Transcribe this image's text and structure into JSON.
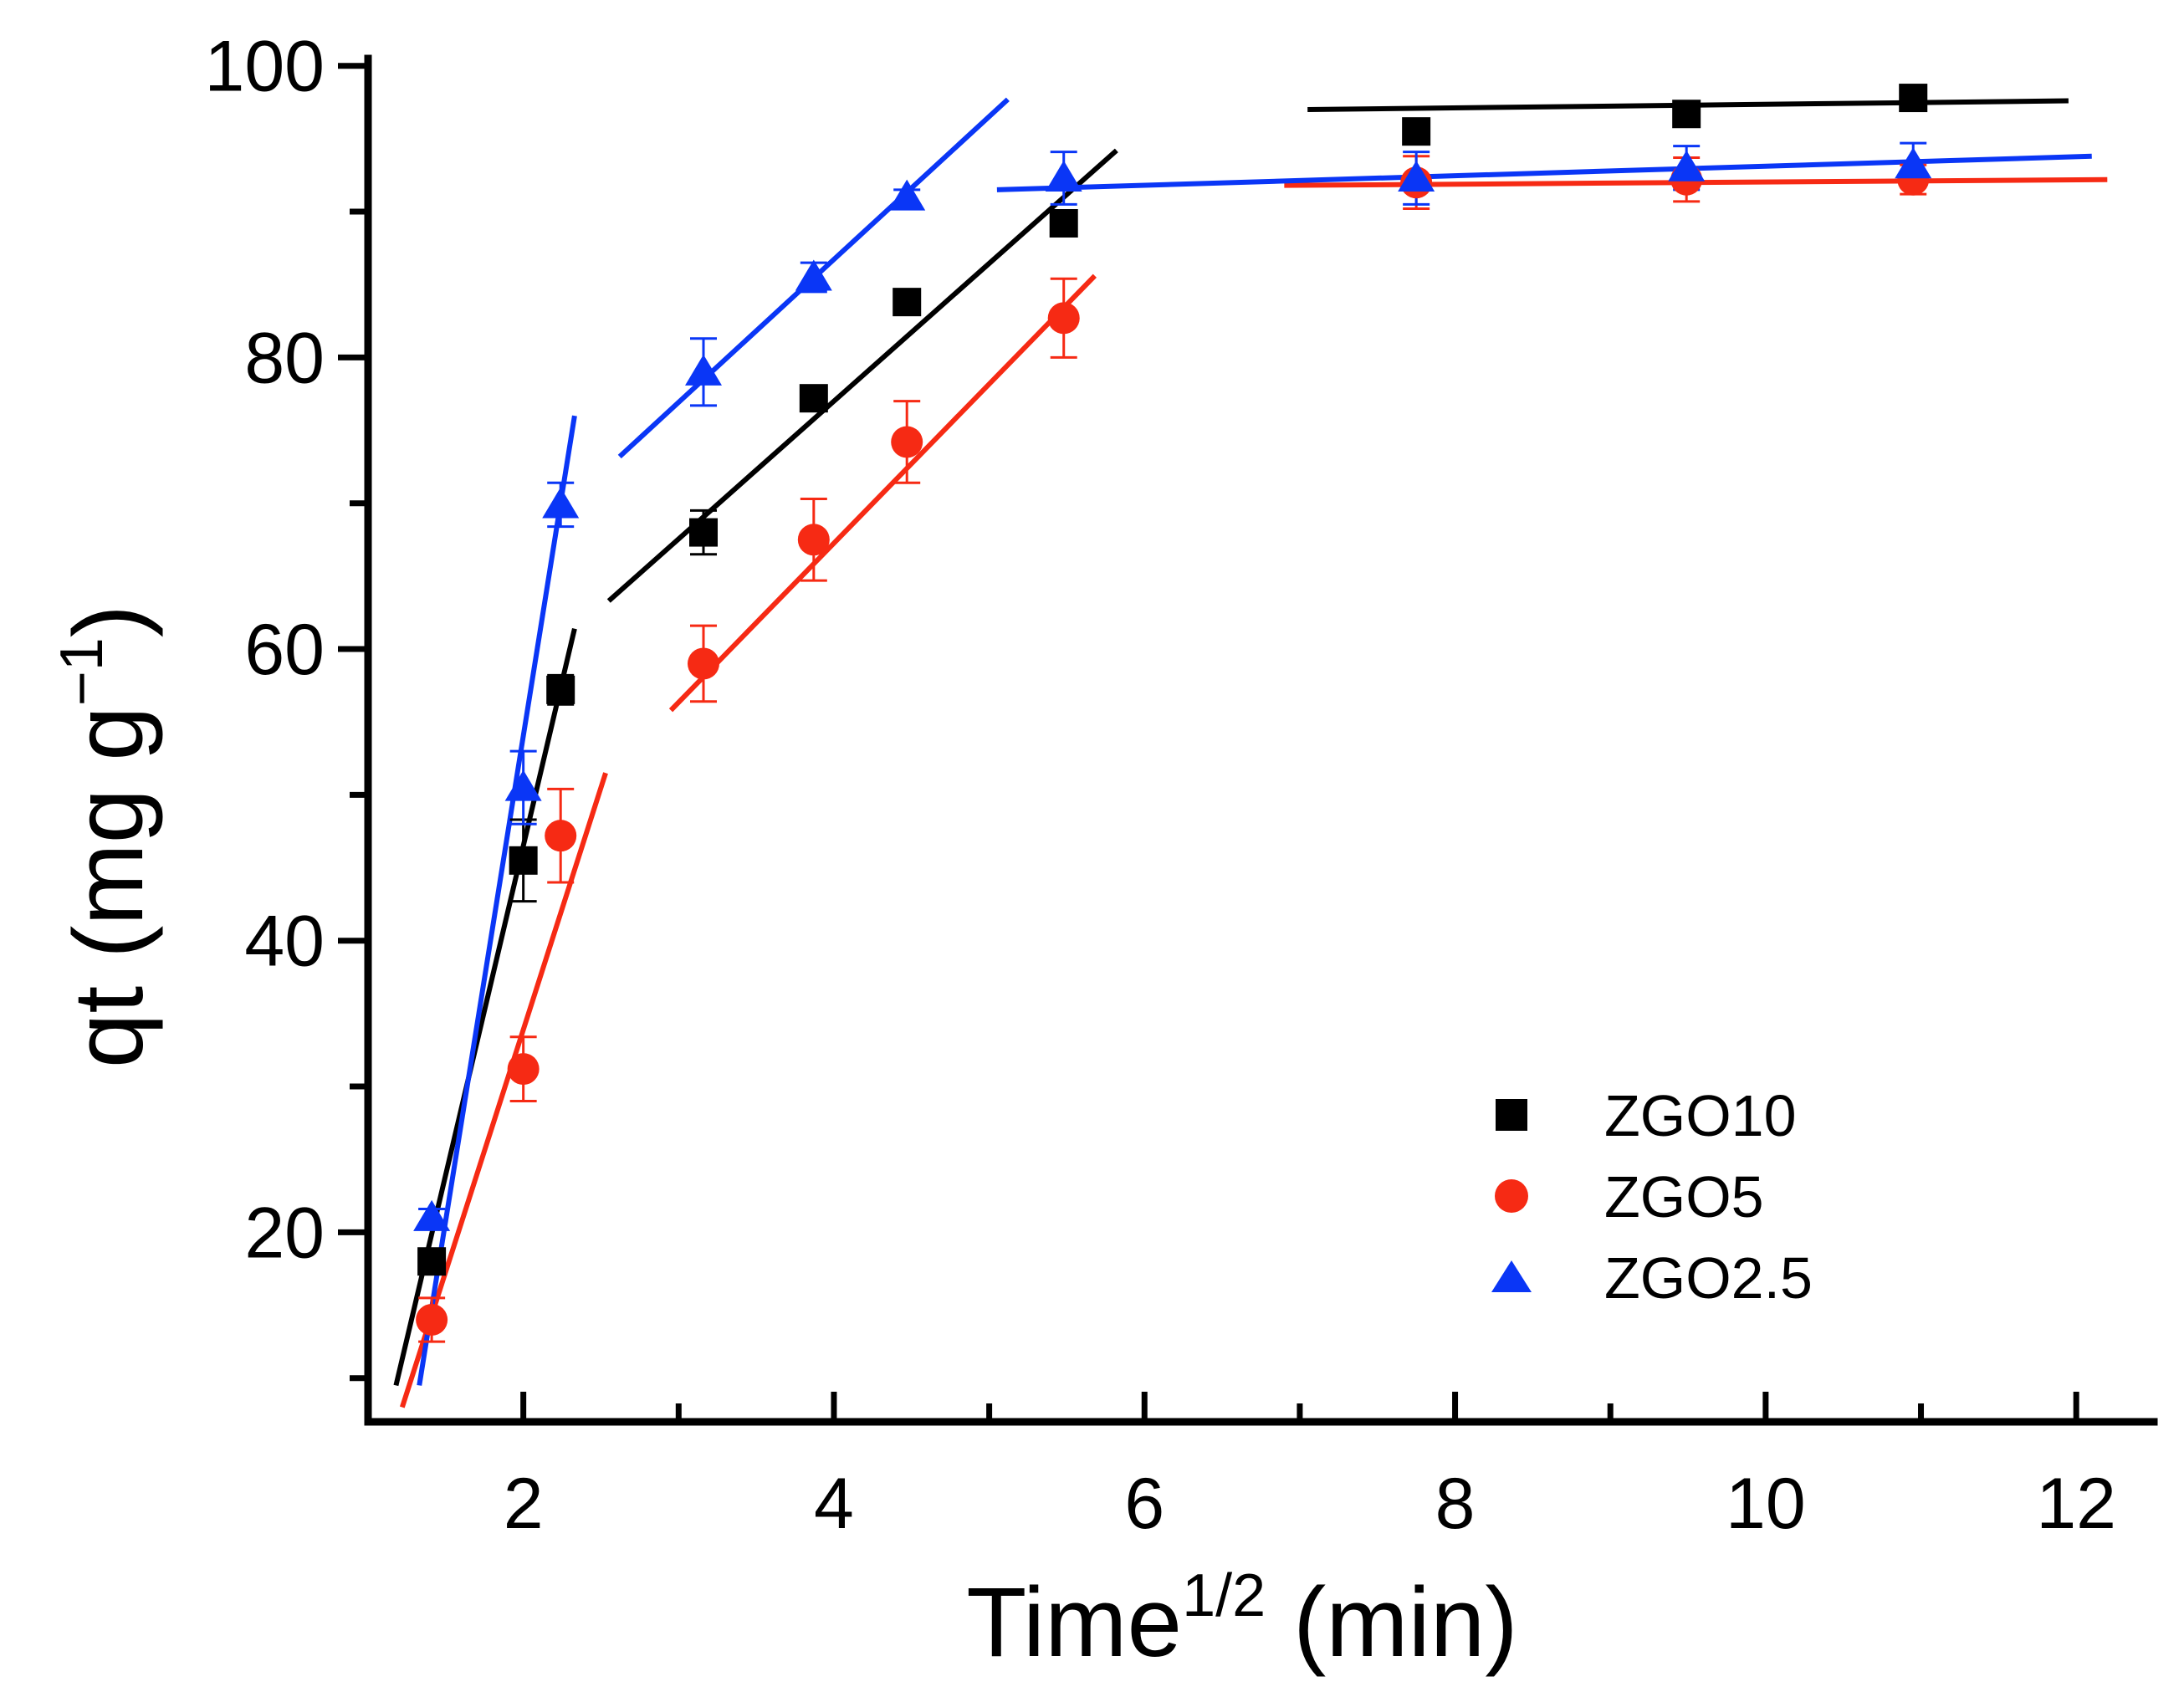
{
  "chart_data": {
    "type": "scatter",
    "title": "",
    "xlabel": "Time",
    "xlabel_sup": "1/2",
    "xlabel_suffix": " (min)",
    "ylabel": "qt (mg g",
    "ylabel_sup": "−1",
    "ylabel_suffix": ")",
    "xlim": [
      1.0,
      12.5
    ],
    "ylim": [
      7.0,
      100.5
    ],
    "xticks_major": [
      2,
      4,
      6,
      8,
      10,
      12
    ],
    "xticks_minor": [
      3,
      5,
      7,
      9,
      11
    ],
    "yticks_major": [
      20,
      40,
      60,
      80,
      100
    ],
    "yticks_minor": [
      10,
      30,
      50,
      70,
      90
    ],
    "legend_position": "bottom-right",
    "series": [
      {
        "name": "ZGO10",
        "color": "#000000",
        "marker": "square",
        "x": [
          1.41,
          2.0,
          2.24,
          3.16,
          3.87,
          4.47,
          5.48,
          7.75,
          9.49,
          10.95
        ],
        "y": [
          18.0,
          45.5,
          57.2,
          68.0,
          77.2,
          83.8,
          89.2,
          95.5,
          96.7,
          97.8
        ],
        "yerr": [
          0.8,
          2.8,
          1.0,
          1.5,
          0.6,
          0.5,
          0.6,
          0.6,
          0.6,
          0.6
        ],
        "fits": [
          {
            "x": [
              1.18,
              2.33
            ],
            "y": [
              9.5,
              61.4
            ]
          },
          {
            "x": [
              2.55,
              5.82
            ],
            "y": [
              63.3,
              94.2
            ]
          },
          {
            "x": [
              7.05,
              11.95
            ],
            "y": [
              97.0,
              97.6
            ]
          }
        ]
      },
      {
        "name": "ZGO5",
        "color": "#f62a14",
        "marker": "circle",
        "x": [
          1.41,
          2.0,
          2.24,
          3.16,
          3.87,
          4.47,
          5.48,
          7.75,
          9.49,
          10.95
        ],
        "y": [
          14.0,
          31.2,
          47.2,
          59.0,
          67.5,
          74.2,
          82.7,
          92.0,
          92.2,
          92.2
        ],
        "yerr": [
          1.5,
          2.2,
          3.2,
          2.6,
          2.8,
          2.8,
          2.7,
          1.8,
          1.5,
          1.0
        ],
        "fits": [
          {
            "x": [
              1.22,
              2.53
            ],
            "y": [
              8.0,
              51.5
            ]
          },
          {
            "x": [
              2.95,
              5.68
            ],
            "y": [
              55.8,
              85.6
            ]
          },
          {
            "x": [
              6.9,
              12.2
            ],
            "y": [
              91.8,
              92.2
            ]
          }
        ]
      },
      {
        "name": "ZGO2.5",
        "color": "#0a36f6",
        "marker": "triangle",
        "x": [
          1.41,
          2.0,
          2.24,
          3.16,
          3.87,
          4.47,
          5.48,
          7.75,
          9.49,
          10.95
        ],
        "y": [
          21.0,
          50.5,
          69.9,
          79.0,
          85.5,
          91.0,
          92.3,
          92.3,
          93.0,
          93.2
        ],
        "yerr": [
          0.6,
          2.5,
          1.5,
          2.3,
          1.0,
          0.5,
          1.8,
          1.8,
          1.5,
          1.5
        ],
        "fits": [
          {
            "x": [
              1.33,
              2.33
            ],
            "y": [
              9.5,
              76.0
            ]
          },
          {
            "x": [
              2.62,
              5.12
            ],
            "y": [
              73.2,
              97.7
            ]
          },
          {
            "x": [
              5.05,
              12.1
            ],
            "y": [
              91.5,
              93.8
            ]
          }
        ]
      }
    ]
  }
}
